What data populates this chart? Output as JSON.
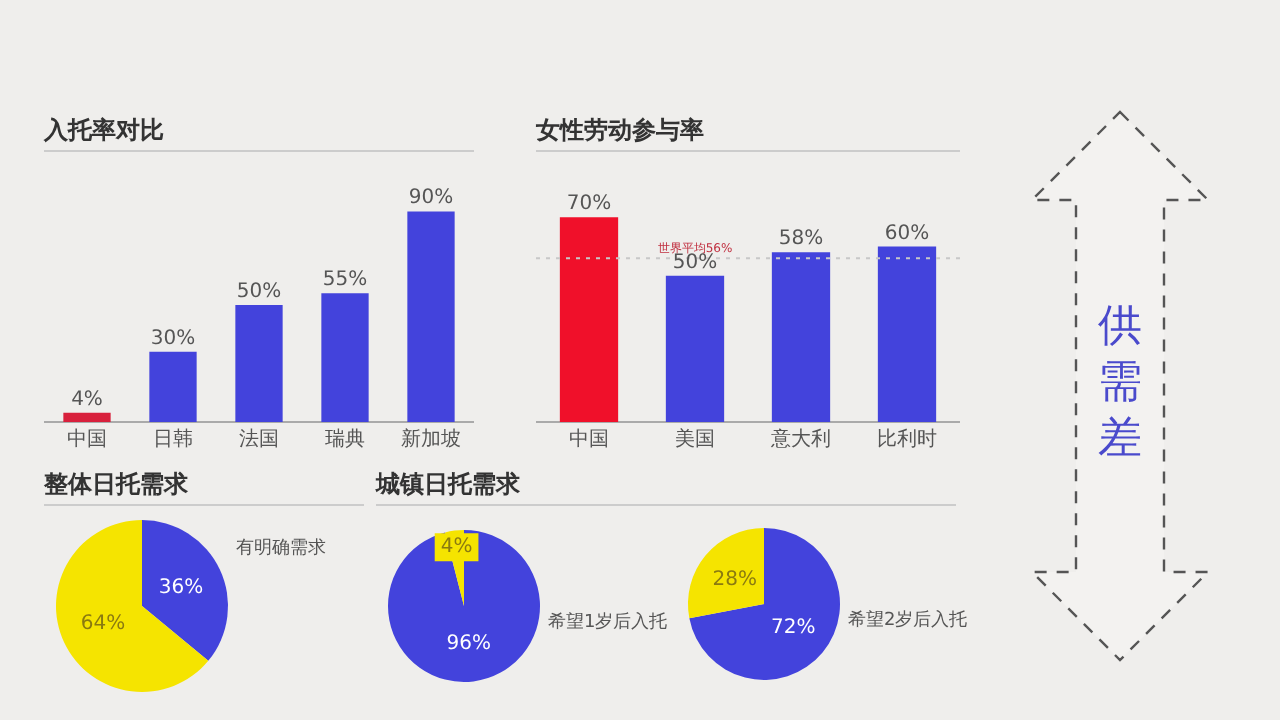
{
  "chart_data": [
    {
      "type": "bar",
      "title": "入托率对比",
      "categories": [
        "中国",
        "日韩",
        "法国",
        "瑞典",
        "新加坡"
      ],
      "values": [
        4,
        30,
        50,
        55,
        90
      ],
      "colors": [
        "#d8203c",
        "#4343dc",
        "#4343dc",
        "#4343dc",
        "#4343dc"
      ],
      "value_labels": [
        "4%",
        "30%",
        "50%",
        "55%",
        "90%"
      ]
    },
    {
      "type": "bar",
      "title": "女性劳动参与率",
      "categories": [
        "中国",
        "美国",
        "意大利",
        "比利时"
      ],
      "values": [
        70,
        50,
        58,
        60
      ],
      "colors": [
        "#f0102a",
        "#4343dc",
        "#4343dc",
        "#4343dc"
      ],
      "value_labels": [
        "70%",
        "50%",
        "58%",
        "60%"
      ],
      "ref_lines": [
        {
          "axis": "y",
          "value": 56,
          "label": "世界平均56%",
          "color": "#c8c8c8",
          "line_style": "dotted"
        }
      ]
    },
    {
      "type": "pie",
      "title": "整体日托需求",
      "categories": [
        "有明确需求",
        null
      ],
      "values": [
        36,
        64
      ],
      "colors": [
        "#4343dc",
        "#f5e400"
      ],
      "value_labels": [
        "36%",
        "64%"
      ]
    },
    {
      "type": "pie",
      "title": "城镇日托需求",
      "subtitle": "希望1岁后入托",
      "categories": [
        null,
        null
      ],
      "values": [
        96,
        4
      ],
      "colors": [
        "#4343dc",
        "#f5e400"
      ],
      "value_labels": [
        "96%",
        "4%"
      ]
    },
    {
      "type": "pie",
      "subtitle": "希望2岁后入托",
      "categories": [
        null,
        null
      ],
      "values": [
        72,
        28
      ],
      "colors": [
        "#4343dc",
        "#f5e400"
      ],
      "value_labels": [
        "72%",
        "28%"
      ]
    },
    {
      "type": "other",
      "title": "供需差"
    }
  ]
}
